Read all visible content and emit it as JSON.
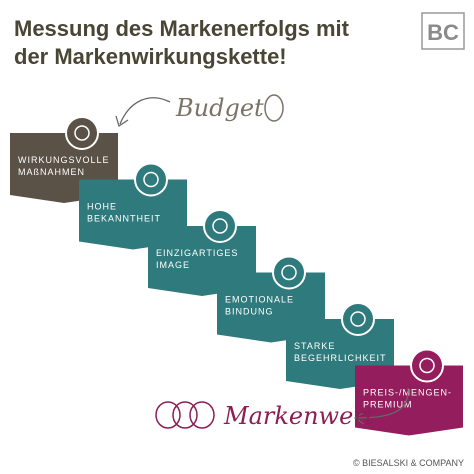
{
  "header": {
    "title": [
      "Messung des Markenerfolgs mit",
      "der Markenwirkungskette!"
    ],
    "logo": "BC"
  },
  "input_label": "Budget",
  "output_label": "Markenwert",
  "steps": [
    {
      "lines": [
        "WIRKUNGSVOLLE",
        "MAßNAHMEN"
      ]
    },
    {
      "lines": [
        "HOHE",
        "BEKANNTHEIT"
      ]
    },
    {
      "lines": [
        "EINZIGARTIGES",
        "IMAGE"
      ]
    },
    {
      "lines": [
        "EMOTIONALE",
        "BINDUNG"
      ]
    },
    {
      "lines": [
        "STARKE",
        "BEGEHRLICHKEIT"
      ]
    },
    {
      "lines": [
        "PREIS-/MENGEN-",
        "PREMIUM"
      ]
    }
  ],
  "footer": "© BIESALSKI & COMPANY"
}
